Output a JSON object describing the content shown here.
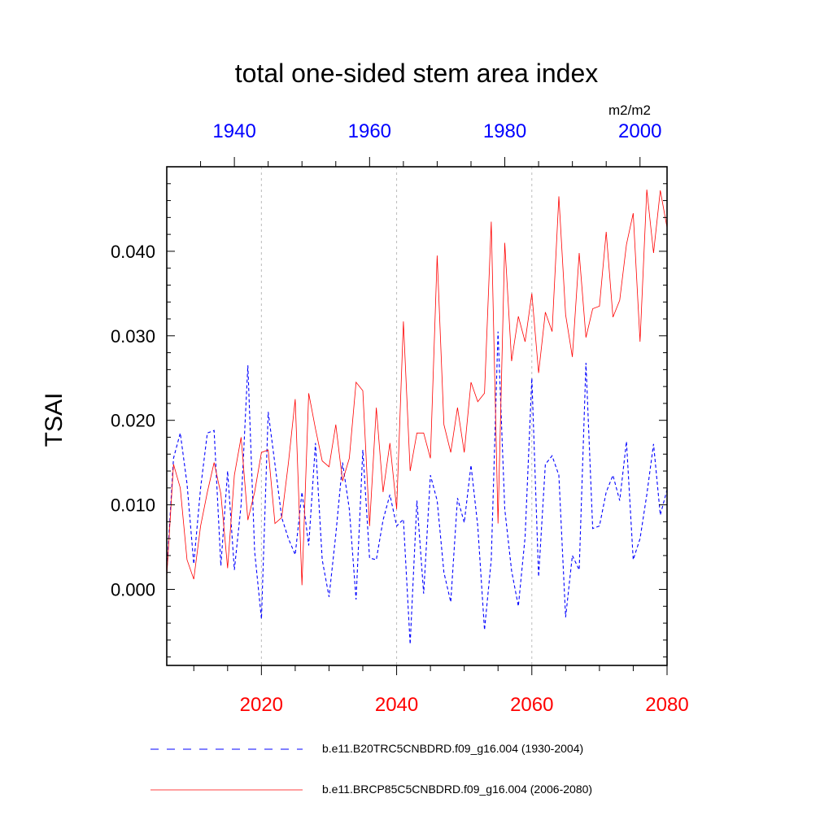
{
  "chart_data": {
    "type": "line",
    "title": "total one-sided stem area index",
    "units": "m2/m2",
    "ylabel": "TSAI",
    "ylim": [
      -0.009,
      0.05
    ],
    "yticks": [
      0.0,
      0.01,
      0.02,
      0.03,
      0.04
    ],
    "ytick_labels": [
      "0.000",
      "0.010",
      "0.020",
      "0.030",
      "0.040"
    ],
    "bottom_axis": {
      "range": [
        2006,
        2080
      ],
      "ticks": [
        2020,
        2040,
        2060,
        2080
      ],
      "tick_labels": [
        "2020",
        "2040",
        "2060",
        "2080"
      ],
      "color": "#ff0000"
    },
    "top_axis": {
      "range": [
        1930,
        2004
      ],
      "ticks": [
        1940,
        1960,
        1980,
        2000
      ],
      "tick_labels": [
        "1940",
        "1960",
        "1980",
        "2000"
      ],
      "color": "#0000ff"
    },
    "gridlines_x": [
      2020,
      2040,
      2060
    ],
    "series": [
      {
        "name": "b.e11.B20TRC5CNBDRD.f09_g16.004 (1930-2004)",
        "axis": "top",
        "color": "#0000ff",
        "dash": "dashed",
        "x": [
          1930,
          1931,
          1932,
          1933,
          1934,
          1935,
          1936,
          1937,
          1938,
          1939,
          1940,
          1941,
          1942,
          1943,
          1944,
          1945,
          1946,
          1947,
          1948,
          1949,
          1950,
          1951,
          1952,
          1953,
          1954,
          1955,
          1956,
          1957,
          1958,
          1959,
          1960,
          1961,
          1962,
          1963,
          1964,
          1965,
          1966,
          1967,
          1968,
          1969,
          1970,
          1971,
          1972,
          1973,
          1974,
          1975,
          1976,
          1977,
          1978,
          1979,
          1980,
          1981,
          1982,
          1983,
          1984,
          1985,
          1986,
          1987,
          1988,
          1989,
          1990,
          1991,
          1992,
          1993,
          1994,
          1995,
          1996,
          1997,
          1998,
          1999,
          2000,
          2001,
          2002,
          2003,
          2004
        ],
        "values": [
          0.002,
          0.0155,
          0.0185,
          0.0125,
          0.003,
          0.012,
          0.0185,
          0.0188,
          0.0028,
          0.014,
          0.0023,
          0.01,
          0.0265,
          0.0045,
          -0.0035,
          0.021,
          0.0148,
          0.0085,
          0.006,
          0.0041,
          0.0115,
          0.0052,
          0.0173,
          0.0035,
          -0.0009,
          0.0065,
          0.015,
          0.0095,
          -0.0012,
          0.0165,
          0.0037,
          0.0035,
          0.0082,
          0.0112,
          0.0075,
          0.0083,
          -0.0065,
          0.0105,
          -0.0005,
          0.0135,
          0.0105,
          0.002,
          -0.0015,
          0.0108,
          0.0079,
          0.0147,
          0.0075,
          -0.0048,
          0.0035,
          0.0305,
          0.0095,
          0.0022,
          -0.002,
          0.0062,
          0.025,
          0.0015,
          0.0148,
          0.0158,
          0.0135,
          -0.0033,
          0.004,
          0.0023,
          0.0268,
          0.0072,
          0.0075,
          0.0115,
          0.0135,
          0.0105,
          0.0175,
          0.0035,
          0.006,
          0.0112,
          0.0172,
          0.0088,
          0.0118
        ]
      },
      {
        "name": "b.e11.BRCP85C5CNBDRD.f09_g16.004 (2006-2080)",
        "axis": "bottom",
        "color": "#ff0000",
        "dash": "solid",
        "x": [
          2006,
          2007,
          2008,
          2009,
          2010,
          2011,
          2012,
          2013,
          2014,
          2015,
          2016,
          2017,
          2018,
          2019,
          2020,
          2021,
          2022,
          2023,
          2024,
          2025,
          2026,
          2027,
          2028,
          2029,
          2030,
          2031,
          2032,
          2033,
          2034,
          2035,
          2036,
          2037,
          2038,
          2039,
          2040,
          2041,
          2042,
          2043,
          2044,
          2045,
          2046,
          2047,
          2048,
          2049,
          2050,
          2051,
          2052,
          2053,
          2054,
          2055,
          2056,
          2057,
          2058,
          2059,
          2060,
          2061,
          2062,
          2063,
          2064,
          2065,
          2066,
          2067,
          2068,
          2069,
          2070,
          2071,
          2072,
          2073,
          2074,
          2075,
          2076,
          2077,
          2078,
          2079,
          2080
        ],
        "values": [
          0.0015,
          0.0148,
          0.012,
          0.0035,
          0.0012,
          0.0075,
          0.0115,
          0.015,
          0.0113,
          0.0025,
          0.0135,
          0.018,
          0.0082,
          0.0115,
          0.0162,
          0.0165,
          0.0078,
          0.0085,
          0.015,
          0.0225,
          0.0005,
          0.0232,
          0.019,
          0.0152,
          0.0145,
          0.0195,
          0.0128,
          0.0155,
          0.0245,
          0.0235,
          0.0075,
          0.0215,
          0.0115,
          0.0173,
          0.0095,
          0.0317,
          0.014,
          0.0185,
          0.0185,
          0.0155,
          0.0395,
          0.0195,
          0.0162,
          0.0215,
          0.0162,
          0.0245,
          0.0222,
          0.0232,
          0.0435,
          0.0078,
          0.041,
          0.027,
          0.0323,
          0.0293,
          0.035,
          0.0256,
          0.0328,
          0.0305,
          0.0465,
          0.0325,
          0.0275,
          0.0398,
          0.0298,
          0.0332,
          0.0335,
          0.0423,
          0.0322,
          0.0342,
          0.0408,
          0.0445,
          0.0293,
          0.0473,
          0.0398,
          0.0472,
          0.0428
        ]
      }
    ],
    "legend": "bottom"
  }
}
